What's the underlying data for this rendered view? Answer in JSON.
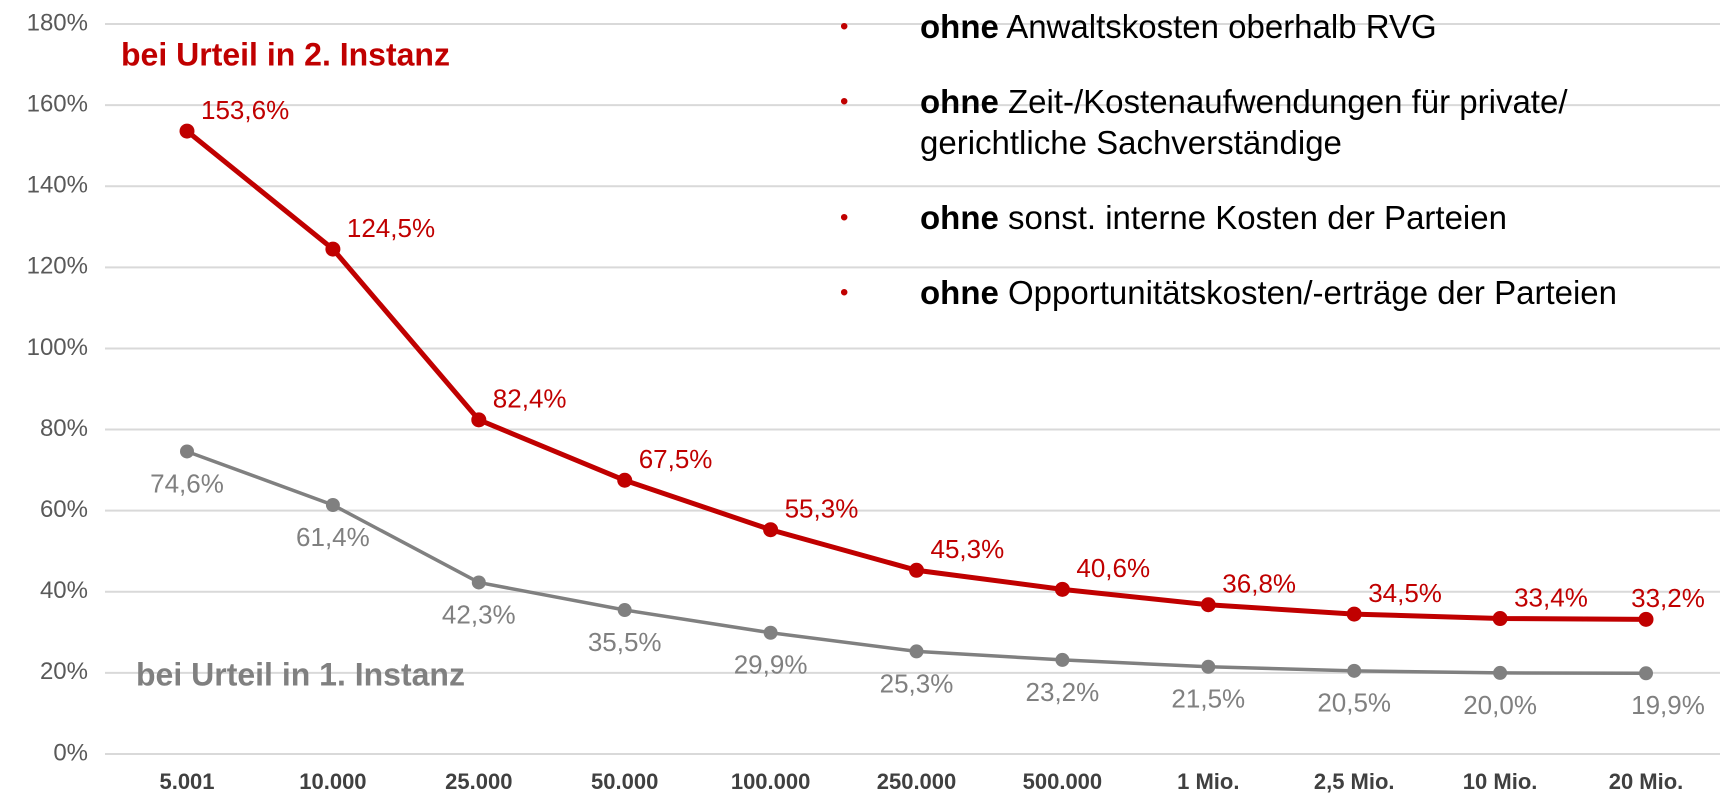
{
  "chart_data": {
    "type": "line",
    "categories": [
      "5.001",
      "10.000",
      "25.000",
      "50.000",
      "100.000",
      "250.000",
      "500.000",
      "1 Mio.",
      "2,5 Mio.",
      "10 Mio.",
      "20 Mio."
    ],
    "series": [
      {
        "name": "bei Urteil in 2. Instanz",
        "color": "#c00000",
        "values": [
          153.6,
          124.5,
          82.4,
          67.5,
          55.3,
          45.3,
          40.6,
          36.8,
          34.5,
          33.4,
          33.2
        ],
        "value_labels": [
          "153,6%",
          "124,5%",
          "82,4%",
          "67,5%",
          "55,3%",
          "45,3%",
          "40,6%",
          "36,8%",
          "34,5%",
          "33,4%",
          "33,2%"
        ]
      },
      {
        "name": "bei Urteil in 1. Instanz",
        "color": "#808080",
        "values": [
          74.6,
          61.4,
          42.3,
          35.5,
          29.9,
          25.3,
          23.2,
          21.5,
          20.5,
          20.0,
          19.9
        ],
        "value_labels": [
          "74,6%",
          "61,4%",
          "42,3%",
          "35,5%",
          "29,9%",
          "25,3%",
          "23,2%",
          "21,5%",
          "20,5%",
          "20,0%",
          "19,9%"
        ]
      }
    ],
    "ylim": [
      0,
      180
    ],
    "yticks": [
      {
        "value": 0,
        "label": "0%"
      },
      {
        "value": 20,
        "label": "20%"
      },
      {
        "value": 40,
        "label": "40%"
      },
      {
        "value": 60,
        "label": "60%"
      },
      {
        "value": 80,
        "label": "80%"
      },
      {
        "value": 100,
        "label": "100%"
      },
      {
        "value": 120,
        "label": "120%"
      },
      {
        "value": 140,
        "label": "140%"
      },
      {
        "value": 160,
        "label": "160%"
      },
      {
        "value": 180,
        "label": "180%"
      }
    ],
    "grid": true,
    "annotations": [
      {
        "bold": "ohne",
        "lines": [
          "Anwaltskosten oberhalb RVG"
        ]
      },
      {
        "bold": "ohne",
        "lines": [
          "Zeit-/Kostenaufwendungen für private/",
          "gerichtliche Sachverständige"
        ]
      },
      {
        "bold": "ohne",
        "lines": [
          "sonst. interne Kosten der Parteien"
        ]
      },
      {
        "bold": "ohne",
        "lines": [
          "Opportunitätskosten/-erträge der Parteien"
        ]
      }
    ]
  }
}
